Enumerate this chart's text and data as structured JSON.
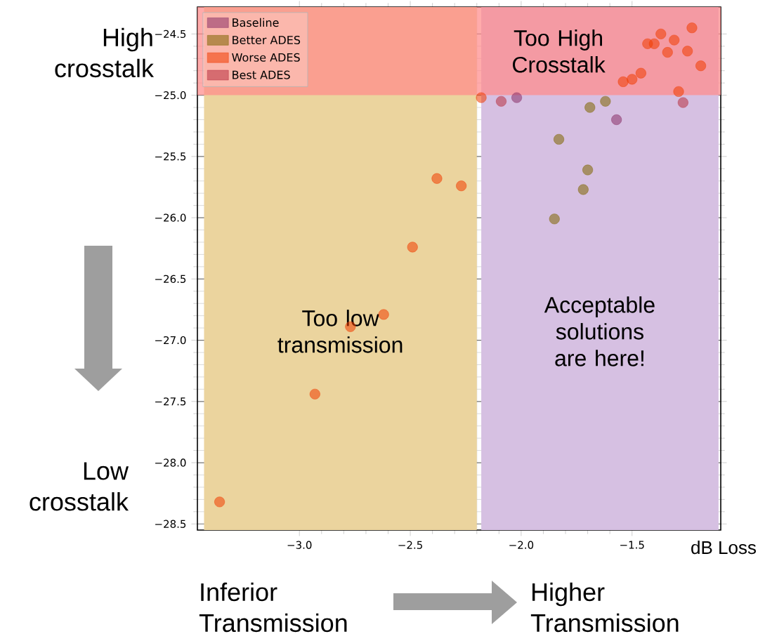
{
  "chart_data": {
    "type": "scatter",
    "xlabel": "dB Loss",
    "series": [
      {
        "name": "Baseline",
        "color": "#8a3068",
        "x": [
          -2.02,
          -1.57
        ],
        "values": [
          -25.02,
          -25.2
        ]
      },
      {
        "name": "Better ADES",
        "color": "#7f6500",
        "x": [
          -1.69,
          -1.62,
          -1.83,
          -1.7,
          -1.72,
          -1.85
        ],
        "values": [
          -25.1,
          -25.05,
          -25.36,
          -25.61,
          -25.77,
          -26.01
        ]
      },
      {
        "name": "Worse ADES",
        "color": "#f03c00",
        "x": [
          -2.38,
          -2.27,
          -2.49,
          -2.62,
          -2.77,
          -2.93,
          -3.36,
          -2.18,
          -1.23,
          -1.37,
          -1.31,
          -1.43,
          -1.4,
          -1.34,
          -1.25,
          -1.19,
          -1.46,
          -1.5,
          -1.54,
          -1.29
        ],
        "values": [
          -25.68,
          -25.74,
          -26.24,
          -26.79,
          -26.89,
          -27.44,
          -28.32,
          -25.02,
          -24.45,
          -24.5,
          -24.55,
          -24.58,
          -24.58,
          -24.65,
          -24.64,
          -24.76,
          -24.82,
          -24.87,
          -24.89,
          -24.97
        ]
      },
      {
        "name": "Best ADES",
        "color": "#b83040",
        "x": [
          -2.09,
          -1.27
        ],
        "values": [
          -25.05,
          -25.06
        ]
      }
    ],
    "xlim": [
      -3.46,
      -1.1
    ],
    "ylim": [
      -28.55,
      -24.28
    ],
    "xticks": [
      {
        "value": -3.0,
        "label": "−3.0"
      },
      {
        "value": -2.5,
        "label": "−2.5"
      },
      {
        "value": -2.0,
        "label": "−2.0"
      },
      {
        "value": -1.5,
        "label": "−1.5"
      }
    ],
    "yticks": [
      {
        "value": -28.5,
        "label": "−28.5"
      },
      {
        "value": -28.0,
        "label": "−28.0"
      },
      {
        "value": -27.5,
        "label": "−27.5"
      },
      {
        "value": -27.0,
        "label": "−27.0"
      },
      {
        "value": -26.5,
        "label": "−26.5"
      },
      {
        "value": -26.0,
        "label": "−26.0"
      },
      {
        "value": -25.5,
        "label": "−25.5"
      },
      {
        "value": -25.0,
        "label": "−25.0"
      },
      {
        "value": -24.5,
        "label": "−24.5"
      }
    ],
    "bands": [
      {
        "axis": "x",
        "from": -3.43,
        "to": -2.2,
        "label": "Too low transmission",
        "color": "#ebd49e"
      },
      {
        "axis": "x",
        "from": -2.18,
        "to": -1.11,
        "label": "Acceptable solutions are here!",
        "color": "#d6c0e2"
      },
      {
        "axis": "y",
        "from": -25.0,
        "to": -24.28,
        "label": "Too High Crosstalk",
        "color": "#ff8a8a"
      }
    ],
    "annotations": [
      "High crosstalk",
      "Low crosstalk",
      "Inferior Transmission",
      "Higher Transmission"
    ],
    "grid": true,
    "legend": "top left",
    "marker": "circle"
  }
}
